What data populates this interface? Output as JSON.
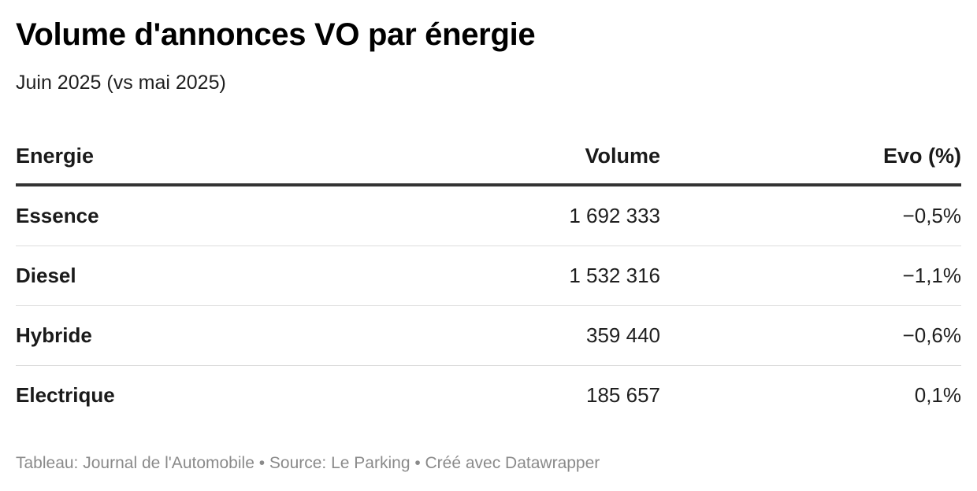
{
  "chart_data": {
    "type": "table",
    "title": "Volume d'annonces VO par énergie",
    "subtitle": "Juin 2025 (vs mai 2025)",
    "columns": [
      "Energie",
      "Volume",
      "Evo (%)"
    ],
    "rows": [
      {
        "energie": "Essence",
        "volume": "1 692 333",
        "evo": "−0,5%"
      },
      {
        "energie": "Diesel",
        "volume": "1 532 316",
        "evo": "−1,1%"
      },
      {
        "energie": "Hybride",
        "volume": "359 440",
        "evo": "−0,6%"
      },
      {
        "energie": "Electrique",
        "volume": "185 657",
        "evo": "0,1%"
      }
    ],
    "footer": "Tableau: Journal de l'Automobile • Source: Le Parking • Créé avec Datawrapper"
  }
}
